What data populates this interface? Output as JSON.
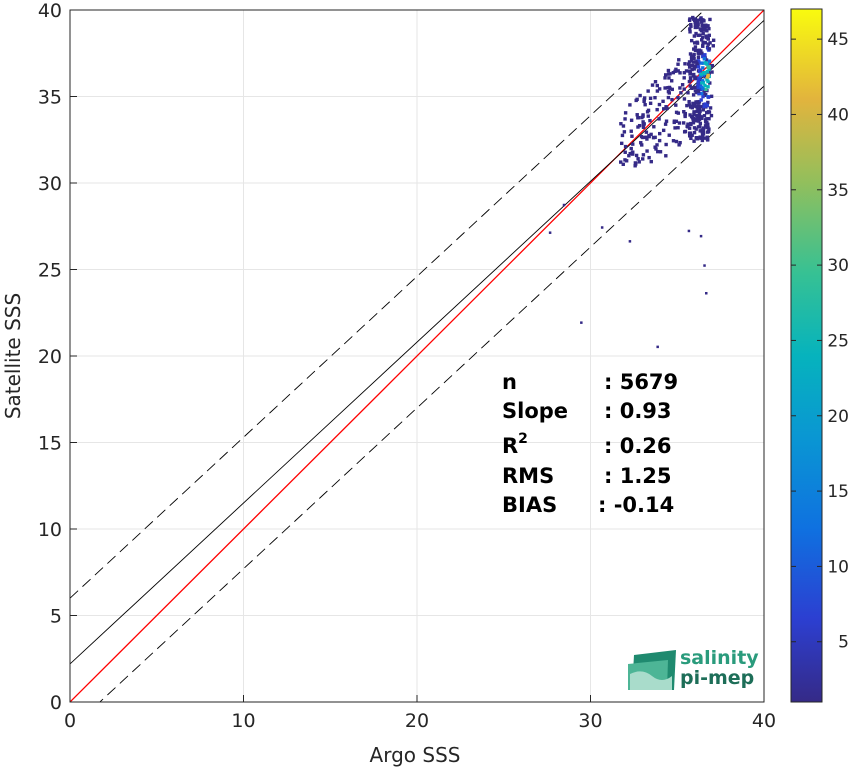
{
  "chart_data": {
    "type": "scatter",
    "title": "",
    "xlabel": "Argo SSS",
    "ylabel": "Satellite SSS",
    "xlim": [
      0,
      40
    ],
    "ylim": [
      0,
      40
    ],
    "xticks": [
      0,
      10,
      20,
      30,
      40
    ],
    "yticks": [
      0,
      5,
      10,
      15,
      20,
      25,
      30,
      35,
      40
    ],
    "grid": true,
    "colorbar": {
      "range": [
        1,
        47
      ],
      "ticks": [
        5,
        10,
        15,
        20,
        25,
        30,
        35,
        40,
        45
      ],
      "colormap": "parula"
    },
    "reference_lines": [
      {
        "name": "identity",
        "color": "#ff0000",
        "slope": 1,
        "intercept": 0
      },
      {
        "name": "fit",
        "color": "#000000",
        "slope": 0.93,
        "intercept": 2.2
      },
      {
        "name": "upper",
        "style": "dashed",
        "color": "#000000",
        "slope": 0.93,
        "intercept": 6.0
      },
      {
        "name": "lower",
        "style": "dashed",
        "color": "#000000",
        "slope": 0.93,
        "intercept": -1.6
      }
    ],
    "density_cluster": {
      "x_range": [
        31.5,
        37.0
      ],
      "y_range": [
        31.0,
        40.0
      ],
      "peak": [
        36.6,
        36.2
      ]
    },
    "outliers": [
      [
        29.4,
        22.0
      ],
      [
        33.8,
        20.6
      ],
      [
        36.5,
        25.3
      ],
      [
        36.6,
        23.7
      ],
      [
        32.2,
        26.7
      ],
      [
        30.6,
        27.5
      ],
      [
        35.6,
        27.3
      ],
      [
        36.3,
        27.0
      ],
      [
        28.4,
        28.8
      ],
      [
        27.6,
        27.2
      ]
    ],
    "stats": [
      {
        "label": "n",
        "sup": "",
        "value": ": 5679"
      },
      {
        "label": "Slope",
        "sup": "",
        "value": ": 0.93"
      },
      {
        "label": "R",
        "sup": "2",
        "value": ": 0.26"
      },
      {
        "label": "RMS",
        "sup": "",
        "value": ": 1.25"
      },
      {
        "label": "BIAS",
        "sup": "",
        "value": ": -0.14"
      }
    ]
  },
  "logo": {
    "line1": "salinity",
    "line2": "pi-mep"
  }
}
